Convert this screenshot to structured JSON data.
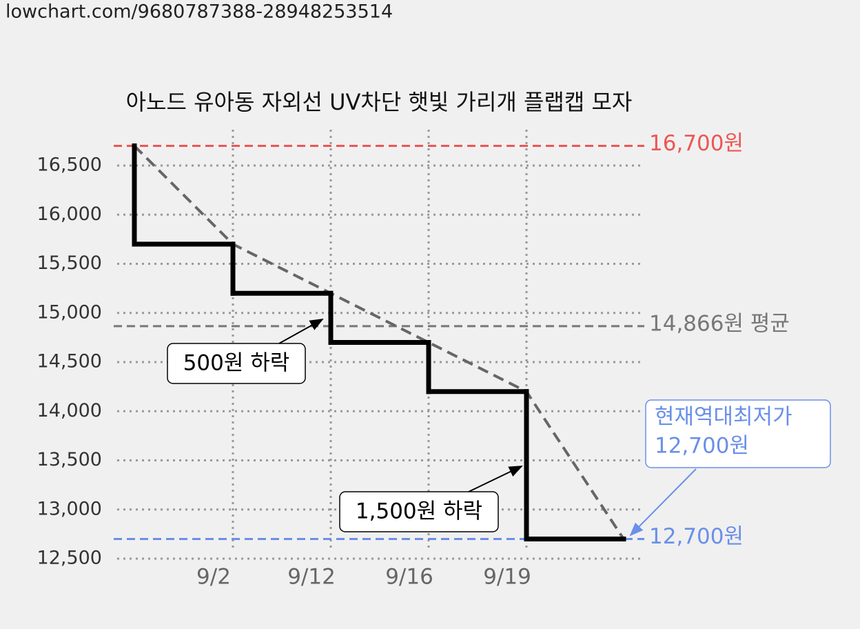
{
  "url": "lowchart.com/9680787388-28948253514",
  "chart_data": {
    "type": "step",
    "title": "아노드 유아동 자외선 UV차단 햇빛 가리개 플랩캡 모자",
    "categories": [
      null,
      "9/2",
      "9/12",
      "9/16",
      "9/19",
      null
    ],
    "series": [
      {
        "color": "#000000",
        "values": [
          15700,
          15200,
          14700,
          14200,
          12700,
          12700
        ]
      },
      {
        "color": "#666666",
        "dashed": true,
        "values": [
          16700,
          15700,
          15200,
          14700,
          14200,
          12700
        ]
      }
    ],
    "ylim": [
      12500,
      16700
    ],
    "yticks": [
      {
        "value": 12500,
        "label": "12,500"
      },
      {
        "value": 13000,
        "label": "13,000"
      },
      {
        "value": 13500,
        "label": "13,500"
      },
      {
        "value": 14000,
        "label": "14,000"
      },
      {
        "value": 14500,
        "label": "14,500"
      },
      {
        "value": 15000,
        "label": "15,000"
      },
      {
        "value": 15500,
        "label": "15,500"
      },
      {
        "value": 16000,
        "label": "16,000"
      },
      {
        "value": 16500,
        "label": "16,500"
      }
    ],
    "grid": true,
    "reference_lines": [
      {
        "value": 16700,
        "label": "16,700원",
        "color": "#ee5555"
      },
      {
        "value": 14866,
        "label": "14,866원 평균",
        "color": "#777777"
      },
      {
        "value": 12700,
        "label": "12,700원",
        "color": "#6a8fe8"
      }
    ],
    "annotations": [
      {
        "text": "500원 하락"
      },
      {
        "text": "1,500원 하락"
      },
      {
        "lines": [
          "현재역대최저가",
          "12,700원"
        ],
        "color": "#6a8fe8"
      }
    ]
  }
}
